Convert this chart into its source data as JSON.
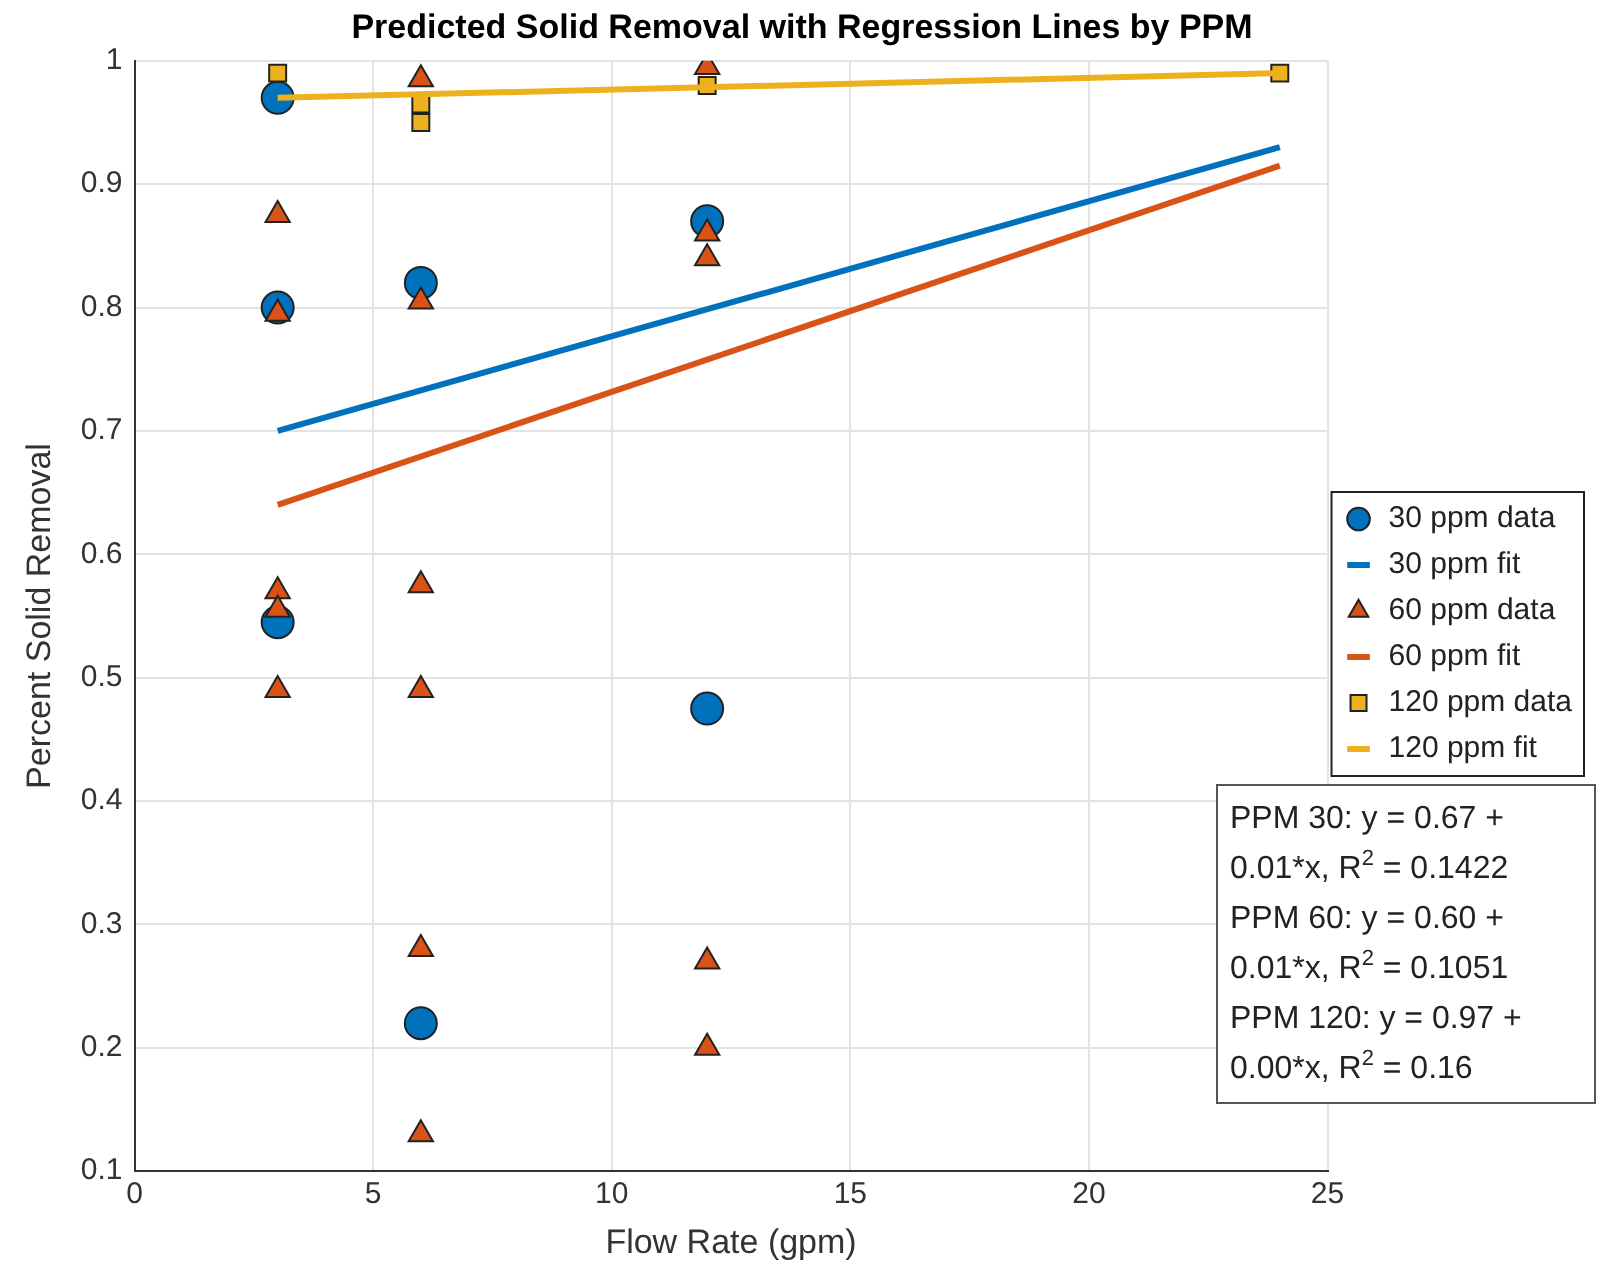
{
  "chart_data": {
    "type": "scatter",
    "title": "Predicted Solid Removal with Regression Lines by PPM",
    "xlabel": "Flow Rate (gpm)",
    "ylabel": "Percent Solid Removal",
    "xlim": [
      0,
      25
    ],
    "xticks": [
      0,
      5,
      10,
      15,
      20,
      25
    ],
    "ylim": [
      0.1,
      1
    ],
    "yticks": [
      0.1,
      0.2,
      0.3,
      0.4,
      0.5,
      0.6,
      0.7,
      0.8,
      0.9,
      1
    ],
    "grid": true,
    "legend": "right",
    "series": [
      {
        "name": "30 ppm data",
        "type": "scatter",
        "marker": "circle",
        "color": "#0072bd",
        "x": [
          3,
          3,
          3,
          6,
          6,
          12,
          12
        ],
        "values": [
          0.97,
          0.8,
          0.545,
          0.82,
          0.22,
          0.87,
          0.475
        ]
      },
      {
        "name": "30 ppm fit",
        "type": "line",
        "marker": "none",
        "color": "#0072bd",
        "x": [
          3,
          24
        ],
        "values": [
          0.7,
          0.93
        ]
      },
      {
        "name": "60 ppm data",
        "type": "scatter",
        "marker": "triangle",
        "color": "#d95319",
        "x": [
          3,
          3,
          3,
          3,
          3,
          6,
          6,
          6,
          6,
          6,
          6,
          12,
          12,
          12,
          12,
          12
        ],
        "values": [
          0.875,
          0.795,
          0.57,
          0.555,
          0.49,
          0.985,
          0.805,
          0.575,
          0.49,
          0.28,
          0.13,
          0.995,
          0.86,
          0.84,
          0.27,
          0.2
        ]
      },
      {
        "name": "60 ppm fit",
        "type": "line",
        "marker": "none",
        "color": "#d95319",
        "x": [
          3,
          24
        ],
        "values": [
          0.64,
          0.915
        ]
      },
      {
        "name": "120 ppm data",
        "type": "scatter",
        "marker": "square",
        "color": "#edb120",
        "x": [
          3,
          6,
          6,
          12,
          24
        ],
        "values": [
          0.99,
          0.965,
          0.95,
          0.98,
          0.99
        ]
      },
      {
        "name": "120 ppm fit",
        "type": "line",
        "marker": "none",
        "color": "#edb120",
        "x": [
          3,
          24
        ],
        "values": [
          0.97,
          0.99
        ]
      }
    ],
    "annotations": [
      "PPM 30: y = 0.67 + 0.01*x, R$^{2}$ = 0.1422",
      "PPM 60: y = 0.60 + 0.01*x, R$^{2}$ = 0.1051",
      "PPM 120: y = 0.97 + 0.00*x, R$^{2}$ = 0.16"
    ]
  }
}
